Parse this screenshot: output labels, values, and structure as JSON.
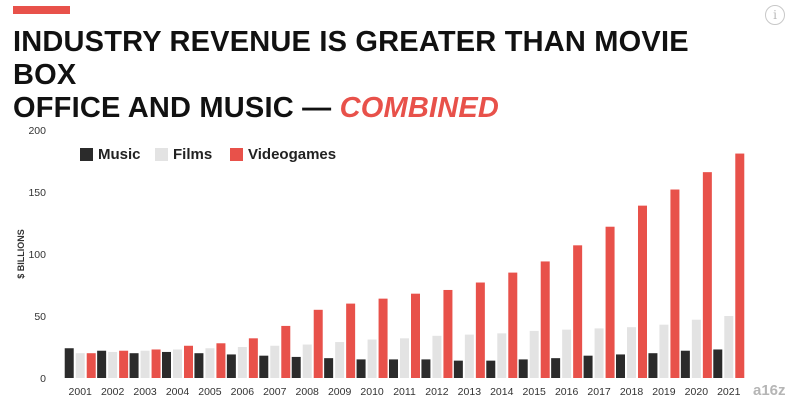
{
  "header": {
    "title_line1": "INDUSTRY REVENUE IS GREATER THAN MOVIE BOX",
    "title_line2": "OFFICE AND MUSIC —",
    "title_accent": "COMBINED",
    "info_icon": "info-icon",
    "watermark": "a16z"
  },
  "colors": {
    "accent": "#e8514a",
    "music": "#2b2b2b",
    "films": "#e3e3e3",
    "videogames": "#e8514a"
  },
  "chart_data": {
    "type": "bar",
    "title": "INDUSTRY REVENUE IS GREATER THAN MOVIE BOX OFFICE AND MUSIC — COMBINED",
    "ylabel": "$ BILLIONS",
    "xlabel": "",
    "ylim": [
      0,
      200
    ],
    "yticks": [
      0,
      50,
      100,
      150,
      200
    ],
    "legend": "top-left",
    "grid": false,
    "categories": [
      "2001",
      "2002",
      "2003",
      "2004",
      "2005",
      "2006",
      "2007",
      "2008",
      "2009",
      "2010",
      "2011",
      "2012",
      "2013",
      "2014",
      "2015",
      "2016",
      "2017",
      "2018",
      "2019",
      "2020",
      "2021"
    ],
    "series": [
      {
        "name": "Music",
        "color": "#2b2b2b",
        "values": [
          24,
          22,
          20,
          21,
          20,
          19,
          18,
          17,
          16,
          15,
          15,
          15,
          14,
          14,
          15,
          16,
          18,
          19,
          20,
          22,
          23
        ]
      },
      {
        "name": "Films",
        "color": "#e3e3e3",
        "values": [
          20,
          21,
          22,
          23,
          24,
          25,
          26,
          27,
          29,
          31,
          32,
          34,
          35,
          36,
          38,
          39,
          40,
          41,
          43,
          47,
          50
        ]
      },
      {
        "name": "Videogames",
        "color": "#e8514a",
        "values": [
          20,
          22,
          23,
          26,
          28,
          32,
          42,
          55,
          60,
          64,
          68,
          71,
          77,
          85,
          94,
          107,
          122,
          139,
          152,
          166,
          181
        ]
      }
    ]
  }
}
